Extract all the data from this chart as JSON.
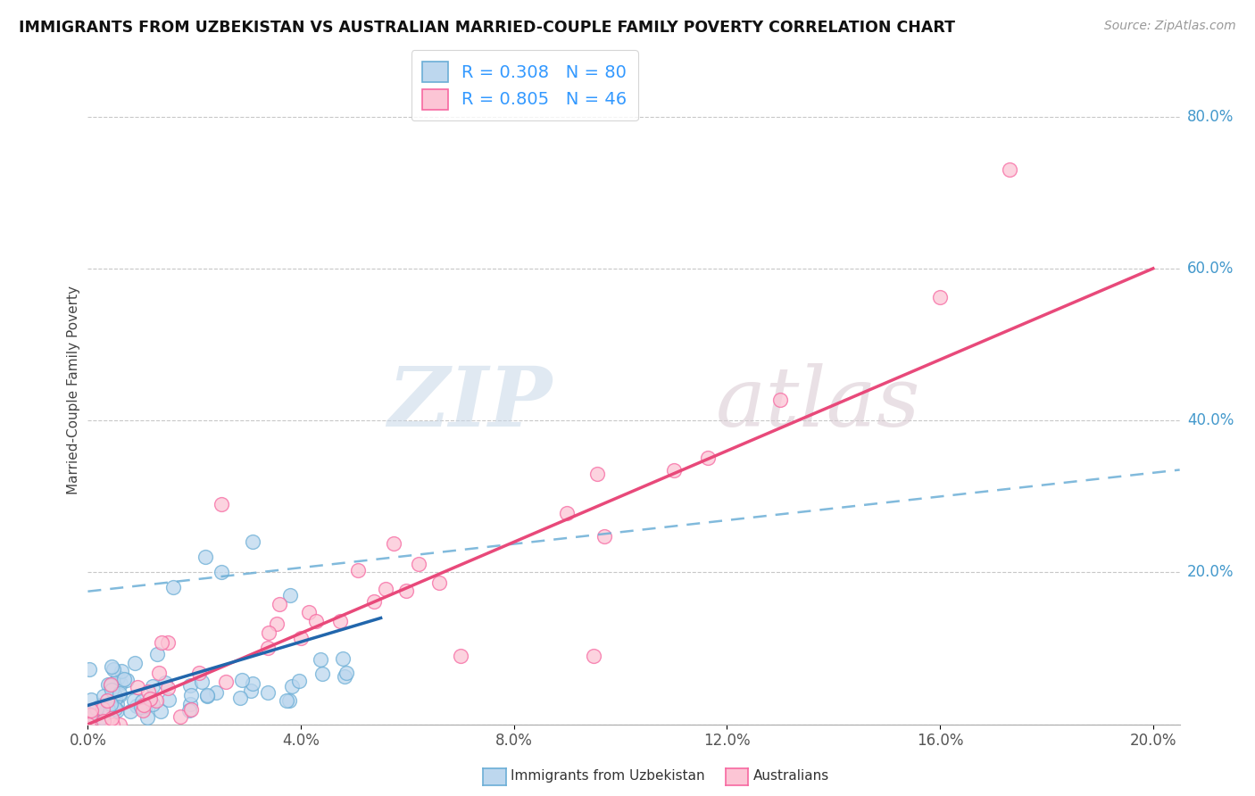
{
  "title": "IMMIGRANTS FROM UZBEKISTAN VS AUSTRALIAN MARRIED-COUPLE FAMILY POVERTY CORRELATION CHART",
  "source": "Source: ZipAtlas.com",
  "ylabel": "Married-Couple Family Poverty",
  "legend_label1": "Immigrants from Uzbekistan",
  "legend_label2": "Australians",
  "R1": 0.308,
  "N1": 80,
  "R2": 0.805,
  "N2": 46,
  "color1_edge": "#6baed6",
  "color2_edge": "#f768a1",
  "color1_fill": "#bdd7ee",
  "color2_fill": "#fcc5d5",
  "line1_color": "#2166ac",
  "line2_color": "#e8497a",
  "dash_color": "#6baed6",
  "xlim": [
    0.0,
    0.205
  ],
  "ylim": [
    0.0,
    0.88
  ],
  "x_ticks": [
    0.0,
    0.04,
    0.08,
    0.12,
    0.16,
    0.2
  ],
  "y_ticks": [
    0.0,
    0.2,
    0.4,
    0.6,
    0.8
  ],
  "background_color": "#ffffff",
  "watermark_zip": "ZIP",
  "watermark_atlas": "atlas",
  "legend_R_color": "#3399ff",
  "legend_N_color": "#3399ff",
  "y_tick_color": "#4499cc"
}
